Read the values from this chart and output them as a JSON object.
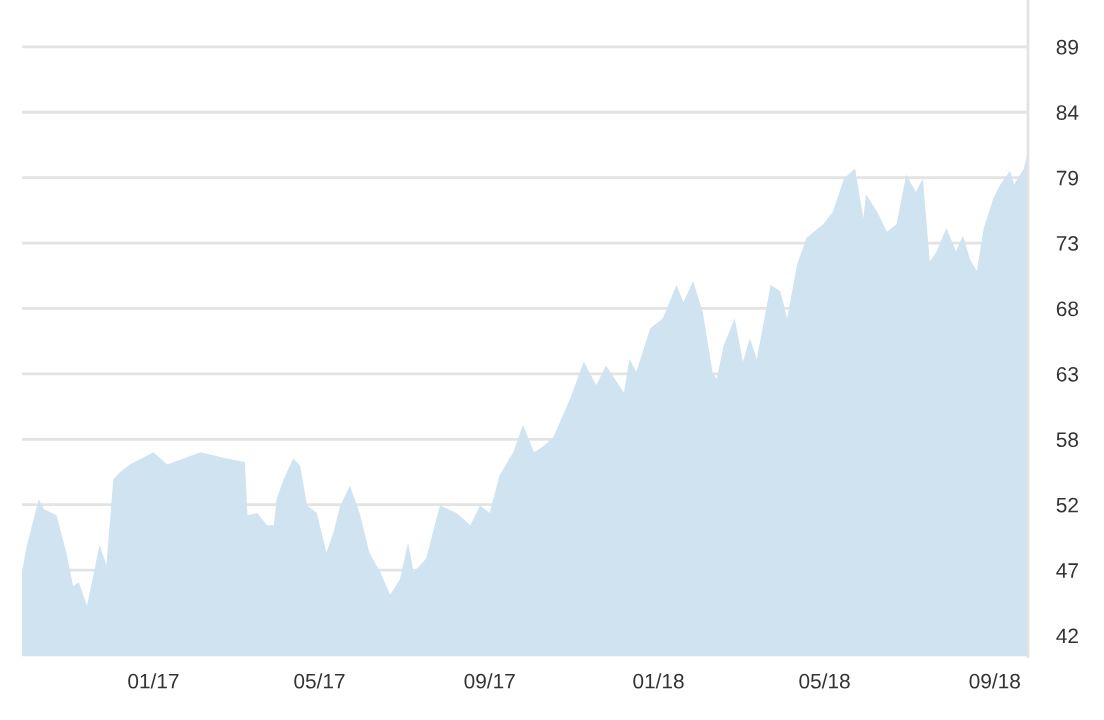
{
  "chart_data": {
    "type": "area",
    "grid": "y",
    "legend": false,
    "x": [
      "2016-09-28",
      "2016-10-01",
      "2016-10-10",
      "2016-10-14",
      "2016-10-23",
      "2016-10-30",
      "2016-11-04",
      "2016-11-08",
      "2016-11-14",
      "2016-11-19",
      "2016-11-23",
      "2016-11-28",
      "2016-12-03",
      "2016-12-08",
      "2016-12-15",
      "2017-01-01",
      "2017-01-11",
      "2017-02-04",
      "2017-02-23",
      "2017-03-08",
      "2017-03-10",
      "2017-03-17",
      "2017-03-24",
      "2017-03-29",
      "2017-03-31",
      "2017-04-05",
      "2017-04-12",
      "2017-04-17",
      "2017-04-22",
      "2017-04-29",
      "2017-05-06",
      "2017-05-11",
      "2017-05-16",
      "2017-05-23",
      "2017-05-30",
      "2017-06-06",
      "2017-06-14",
      "2017-06-21",
      "2017-06-28",
      "2017-07-04",
      "2017-07-08",
      "2017-07-17",
      "2017-07-27",
      "2017-08-08",
      "2017-08-18",
      "2017-08-25",
      "2017-09-01",
      "2017-09-08",
      "2017-09-18",
      "2017-09-25",
      "2017-10-03",
      "2017-10-10",
      "2017-10-17",
      "2017-10-29",
      "2017-11-08",
      "2017-11-17",
      "2017-11-24",
      "2017-12-07",
      "2017-12-11",
      "2017-12-16",
      "2017-12-26",
      "2018-01-04",
      "2018-01-14",
      "2018-01-19",
      "2018-01-26",
      "2018-02-02",
      "2018-02-09",
      "2018-02-12",
      "2018-02-17",
      "2018-02-25",
      "2018-03-03",
      "2018-03-08",
      "2018-03-13",
      "2018-03-23",
      "2018-03-30",
      "2018-04-04",
      "2018-04-11",
      "2018-04-18",
      "2018-04-30",
      "2018-05-07",
      "2018-05-15",
      "2018-05-23",
      "2018-05-29",
      "2018-05-31",
      "2018-06-08",
      "2018-06-15",
      "2018-06-22",
      "2018-06-29",
      "2018-07-06",
      "2018-07-11",
      "2018-07-16",
      "2018-07-21",
      "2018-07-28",
      "2018-08-04",
      "2018-08-09",
      "2018-08-14",
      "2018-08-19",
      "2018-08-24",
      "2018-08-31",
      "2018-09-05",
      "2018-09-12",
      "2018-09-15",
      "2018-09-22",
      "2018-09-25"
    ],
    "series": [
      {
        "color": "#cfe3f0",
        "values": [
          46.8,
          48.7,
          52.7,
          51.9,
          51.4,
          48.4,
          45.7,
          46.0,
          44.1,
          46.8,
          49.0,
          47.4,
          54.3,
          54.9,
          55.5,
          56.5,
          55.5,
          56.5,
          56.0,
          55.7,
          51.4,
          51.6,
          50.6,
          50.6,
          52.7,
          54.3,
          56.0,
          55.4,
          52.2,
          51.6,
          48.4,
          50.0,
          52.2,
          53.8,
          51.6,
          48.4,
          46.8,
          45.0,
          46.2,
          49.2,
          46.8,
          47.9,
          52.2,
          51.6,
          50.6,
          52.2,
          51.6,
          54.6,
          56.5,
          58.7,
          56.5,
          57.0,
          57.7,
          60.8,
          63.8,
          61.9,
          63.5,
          61.3,
          64.0,
          63.0,
          66.5,
          67.3,
          70.0,
          68.6,
          70.3,
          67.8,
          63.0,
          62.4,
          65.1,
          67.3,
          63.8,
          65.7,
          64.0,
          70.0,
          69.5,
          67.3,
          71.6,
          73.8,
          74.9,
          75.9,
          78.6,
          79.4,
          75.4,
          77.3,
          75.9,
          74.3,
          74.9,
          78.9,
          77.5,
          78.6,
          71.9,
          72.7,
          74.6,
          72.7,
          74.0,
          72.1,
          71.1,
          74.6,
          77.0,
          78.1,
          79.2,
          78.1,
          79.4,
          80.8
        ]
      }
    ],
    "xlim": [
      "2016-09-28",
      "2018-09-25"
    ],
    "xticks": [
      {
        "value": "2017-01-01",
        "label": "01/17"
      },
      {
        "value": "2017-05-01",
        "label": "05/17"
      },
      {
        "value": "2017-09-01",
        "label": "09/17"
      },
      {
        "value": "2018-01-01",
        "label": "01/18"
      },
      {
        "value": "2018-05-01",
        "label": "05/18"
      },
      {
        "value": "2018-09-01",
        "label": "09/18"
      }
    ],
    "ylim": [
      40,
      93
    ],
    "yticks": [
      {
        "value": 41.7,
        "label": "42"
      },
      {
        "value": 46.98,
        "label": "47"
      },
      {
        "value": 52.26,
        "label": "52"
      },
      {
        "value": 57.54,
        "label": "58"
      },
      {
        "value": 62.82,
        "label": "63"
      },
      {
        "value": 68.1,
        "label": "68"
      },
      {
        "value": 73.38,
        "label": "73"
      },
      {
        "value": 78.66,
        "label": "79"
      },
      {
        "value": 83.94,
        "label": "84"
      },
      {
        "value": 89.22,
        "label": "89"
      }
    ]
  }
}
